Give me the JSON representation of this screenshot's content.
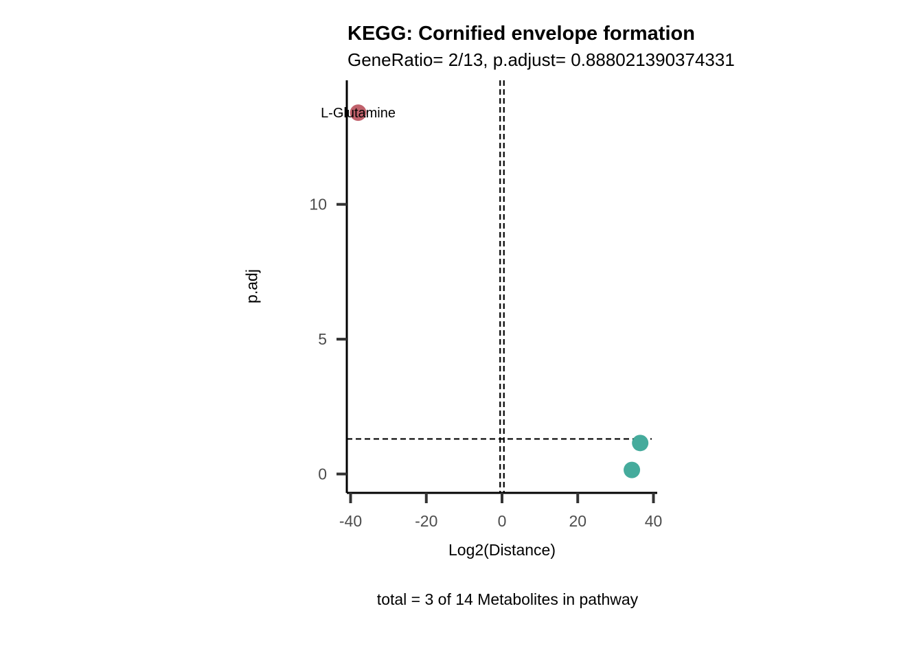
{
  "chart_data": {
    "type": "scatter",
    "title": "KEGG: Cornified envelope formation",
    "subtitle": "GeneRatio= 2/13, p.adjust= 0.888021390374331",
    "xlabel": "Log2(Distance)",
    "ylabel": "p.adj",
    "caption": "total = 3 of 14 Metabolites in pathway",
    "xlim": [
      -41,
      41
    ],
    "ylim": [
      -0.7,
      14.6
    ],
    "x_ticks": [
      -40,
      -20,
      0,
      20,
      40
    ],
    "y_ticks": [
      0,
      5,
      10
    ],
    "grid": false,
    "legend": "none",
    "reference_lines": {
      "vertical": [
        -0.5,
        0.5
      ],
      "horizontal": 1.3
    },
    "points": [
      {
        "x": -38,
        "y": 13.4,
        "label": "L-Glutamine",
        "color": "#c0616b"
      },
      {
        "x": 36.5,
        "y": 1.15,
        "label": "",
        "color": "#45ab9c"
      },
      {
        "x": 34.3,
        "y": 0.15,
        "label": "",
        "color": "#45ab9c"
      }
    ]
  }
}
